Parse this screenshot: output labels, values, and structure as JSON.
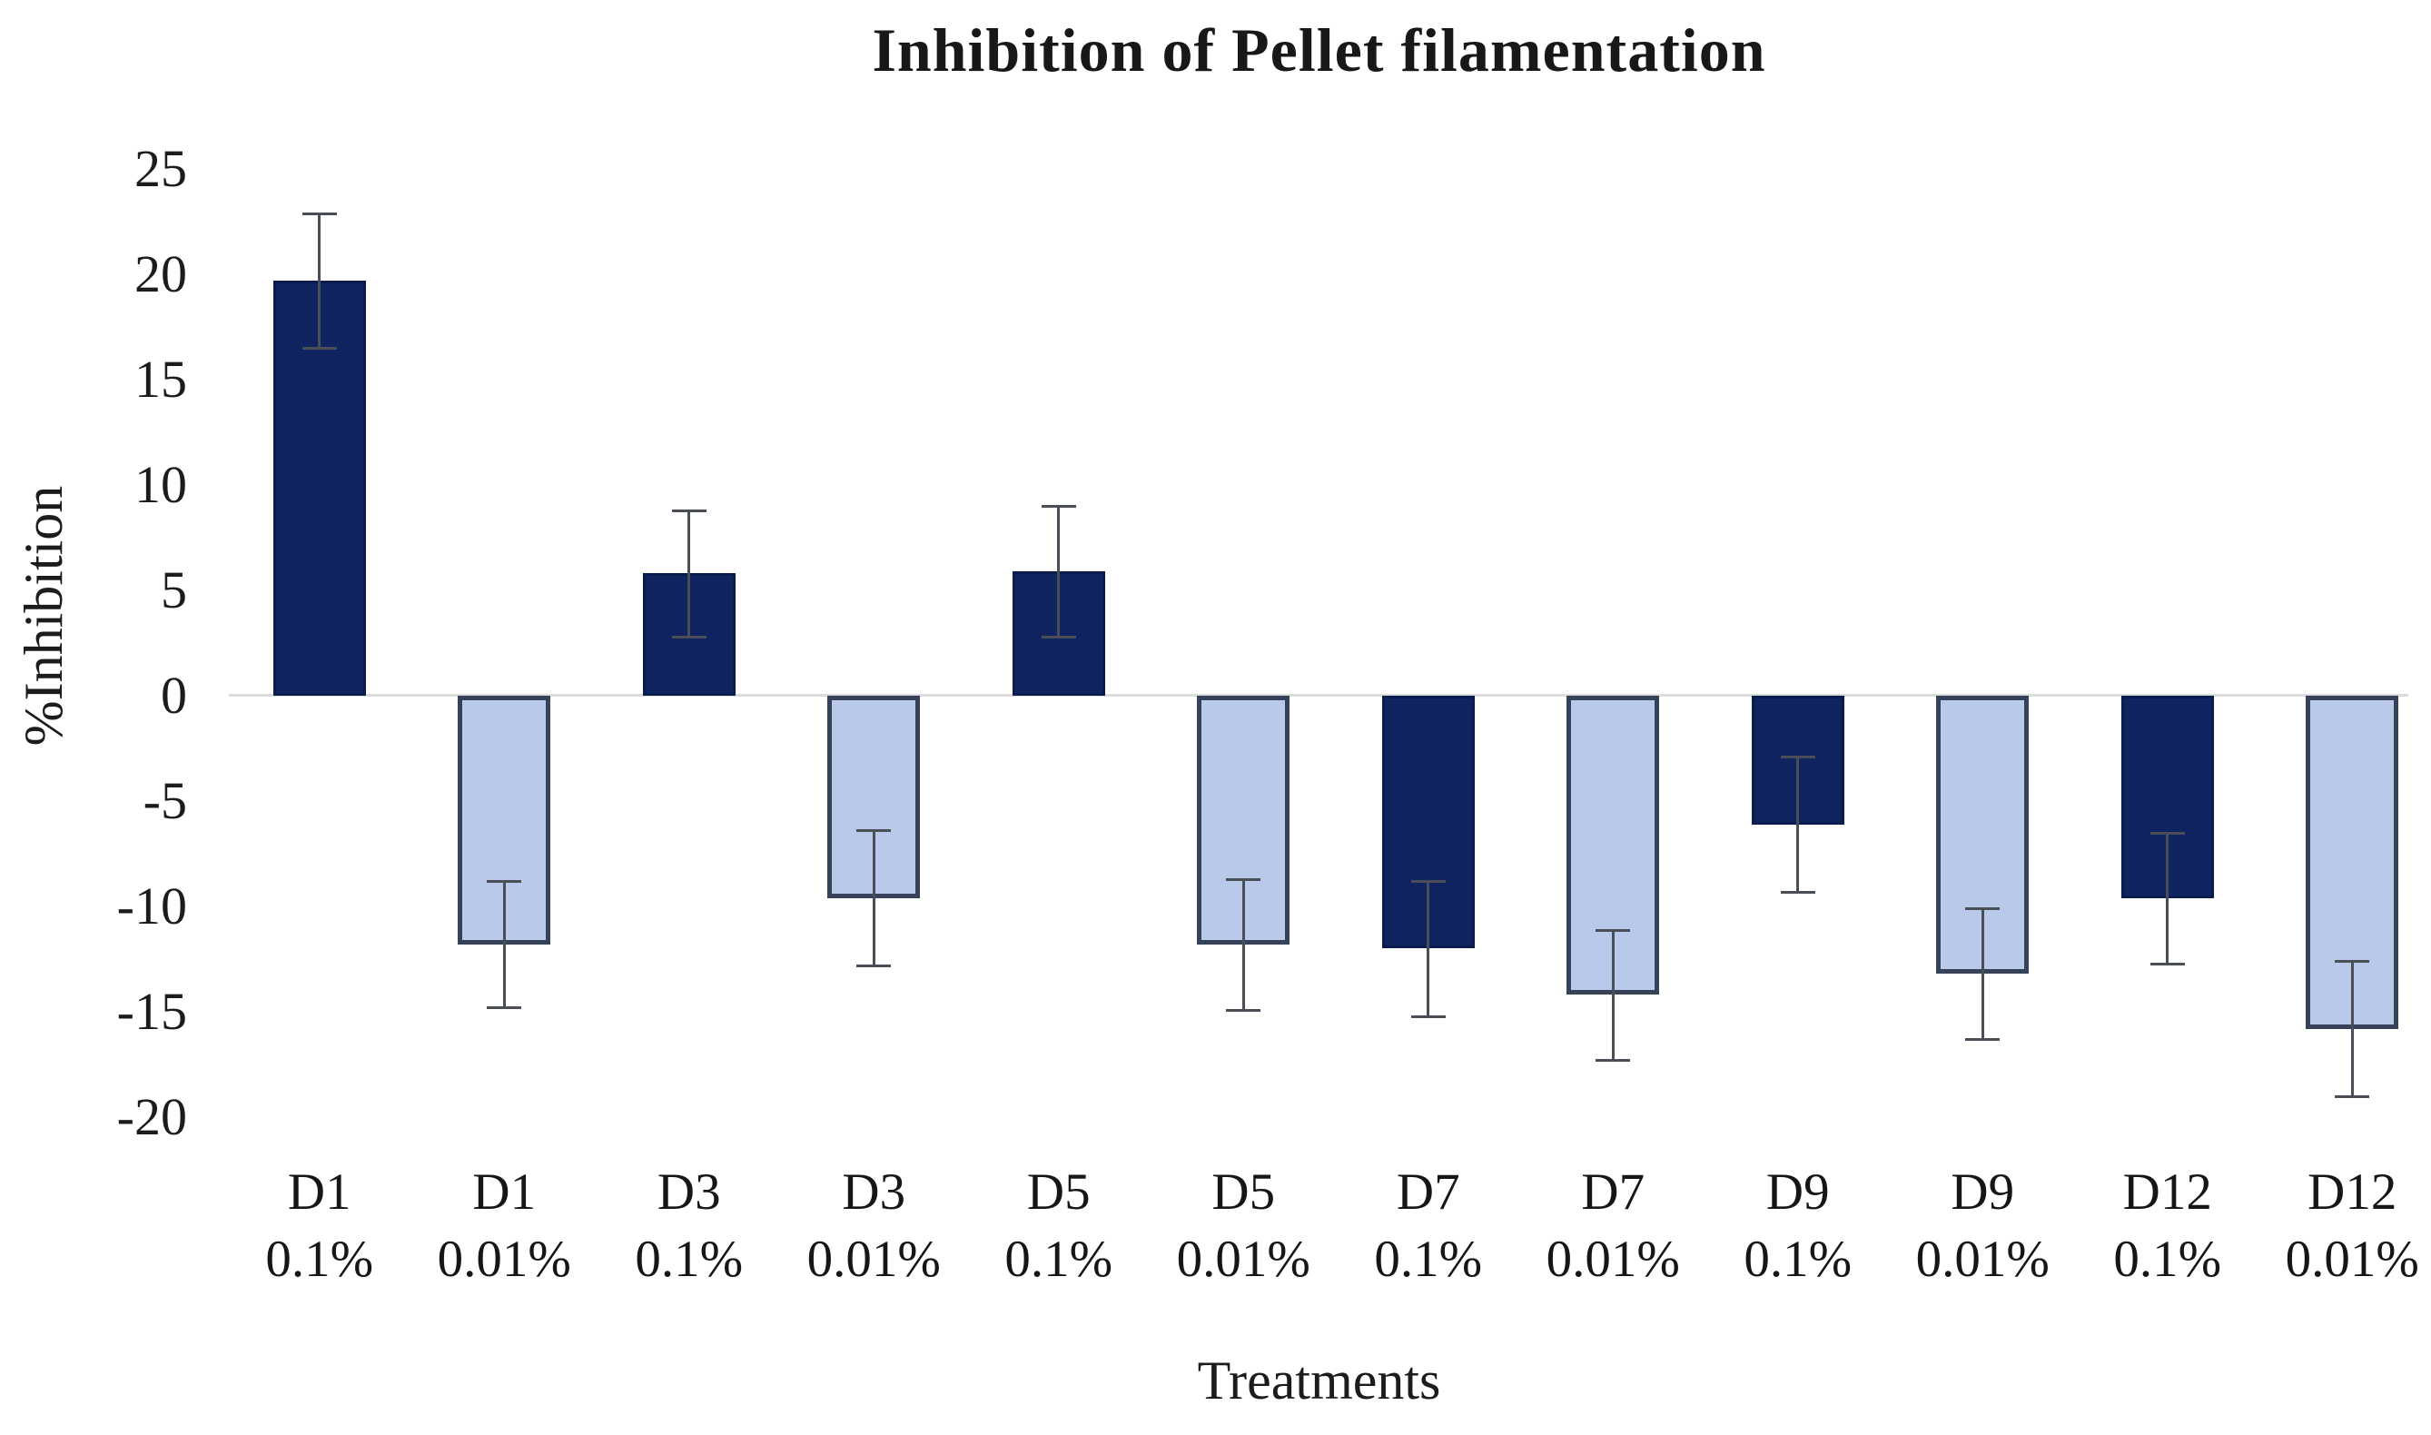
{
  "chart_data": {
    "type": "bar",
    "title": "Inhibition of Pellet filamentation",
    "xlabel": "Treatments",
    "ylabel": "%Inhibition",
    "ylim": [
      -20,
      25
    ],
    "ytick_step": 5,
    "yticks": [
      25,
      20,
      15,
      10,
      5,
      0,
      -5,
      -10,
      -15,
      -20
    ],
    "grid": "zero-line-only",
    "legend": "none",
    "categories": [
      {
        "treatment": "D1",
        "concentration": "0.1%",
        "shade": "dark"
      },
      {
        "treatment": "D1",
        "concentration": "0.01%",
        "shade": "light"
      },
      {
        "treatment": "D3",
        "concentration": "0.1%",
        "shade": "dark"
      },
      {
        "treatment": "D3",
        "concentration": "0.01%",
        "shade": "light"
      },
      {
        "treatment": "D5",
        "concentration": "0.1%",
        "shade": "dark"
      },
      {
        "treatment": "D5",
        "concentration": "0.01%",
        "shade": "light"
      },
      {
        "treatment": "D7",
        "concentration": "0.1%",
        "shade": "dark"
      },
      {
        "treatment": "D7",
        "concentration": "0.01%",
        "shade": "light"
      },
      {
        "treatment": "D9",
        "concentration": "0.1%",
        "shade": "dark"
      },
      {
        "treatment": "D9",
        "concentration": "0.01%",
        "shade": "light"
      },
      {
        "treatment": "D12",
        "concentration": "0.1%",
        "shade": "dark"
      },
      {
        "treatment": "D12",
        "concentration": "0.01%",
        "shade": "light"
      }
    ],
    "values": [
      19.7,
      -11.8,
      5.8,
      -9.6,
      5.9,
      -11.8,
      -12.0,
      -14.2,
      -6.1,
      -13.2,
      -9.6,
      -15.8
    ],
    "errors": [
      3.2,
      3.0,
      3.0,
      3.2,
      3.1,
      3.1,
      3.2,
      3.1,
      3.2,
      3.1,
      3.1,
      3.2
    ],
    "colors": {
      "dark_fill": "#0f2461",
      "dark_border": "#0a1b4d",
      "light_fill": "#b8c9e9",
      "light_border": "#36425a",
      "gridline": "#dcdcdc",
      "error_bar": "#4a4e57",
      "text": "#1c1c1c"
    }
  }
}
